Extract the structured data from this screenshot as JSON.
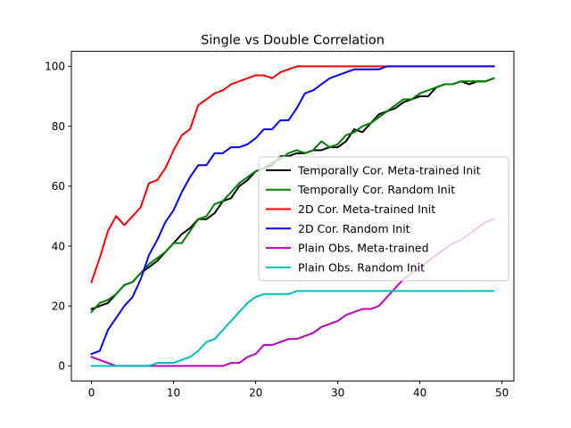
{
  "chart_data": {
    "type": "line",
    "title": "Single vs Double Correlation",
    "xlabel": "",
    "ylabel": "",
    "xlim": [
      -2.45,
      51.45
    ],
    "ylim": [
      -5,
      105
    ],
    "x_ticks": [
      0,
      10,
      20,
      30,
      40,
      50
    ],
    "y_ticks": [
      0,
      20,
      40,
      60,
      80,
      100
    ],
    "grid": false,
    "legend_position": "center-right",
    "x": [
      0,
      1,
      2,
      3,
      4,
      5,
      6,
      7,
      8,
      9,
      10,
      11,
      12,
      13,
      14,
      15,
      16,
      17,
      18,
      19,
      20,
      21,
      22,
      23,
      24,
      25,
      26,
      27,
      28,
      29,
      30,
      31,
      32,
      33,
      34,
      35,
      36,
      37,
      38,
      39,
      40,
      41,
      42,
      43,
      44,
      45,
      46,
      47,
      48,
      49
    ],
    "series": [
      {
        "name": "Temporally Cor. Meta-trained Init",
        "color": "#000000",
        "values": [
          19,
          20,
          21,
          24,
          27,
          28,
          31,
          33,
          35,
          38,
          41,
          44,
          46,
          49,
          49,
          51,
          55,
          56,
          60,
          62,
          65,
          66,
          67,
          70,
          70,
          71,
          71,
          72,
          72,
          73,
          73,
          75,
          79,
          78,
          81,
          84,
          85,
          86,
          88,
          89,
          90,
          90,
          93,
          94,
          94,
          95,
          94,
          95,
          95,
          96
        ]
      },
      {
        "name": "Temporally Cor. Random Init",
        "color": "#008000",
        "values": [
          18,
          21,
          22,
          24,
          27,
          28,
          31,
          34,
          36,
          38,
          41,
          41,
          45,
          49,
          50,
          54,
          55,
          58,
          61,
          63,
          65,
          66,
          68,
          69,
          71,
          72,
          71,
          72,
          75,
          73,
          74,
          77,
          78,
          80,
          81,
          83,
          85,
          87,
          89,
          89,
          91,
          92,
          93,
          94,
          94,
          95,
          95,
          95,
          95,
          96
        ]
      },
      {
        "name": "2D Cor. Meta-trained Init",
        "color": "#ff0000",
        "values": [
          28,
          36,
          45,
          50,
          47,
          50,
          53,
          61,
          62,
          66,
          72,
          77,
          79,
          87,
          89,
          91,
          92,
          94,
          95,
          96,
          97,
          97,
          96,
          98,
          99,
          100,
          100,
          100,
          100,
          100,
          100,
          100,
          100,
          100,
          100,
          100,
          100,
          100,
          100,
          100,
          100,
          100,
          100,
          100,
          100,
          100,
          100,
          100,
          100,
          100
        ]
      },
      {
        "name": "2D Cor. Random Init",
        "color": "#0000ff",
        "values": [
          4,
          5,
          12,
          16,
          20,
          23,
          29,
          37,
          42,
          48,
          52,
          58,
          63,
          67,
          67,
          71,
          71,
          73,
          73,
          74,
          76,
          79,
          79,
          82,
          82,
          86,
          91,
          92,
          94,
          96,
          97,
          98,
          99,
          99,
          99,
          99,
          100,
          100,
          100,
          100,
          100,
          100,
          100,
          100,
          100,
          100,
          100,
          100,
          100,
          100
        ]
      },
      {
        "name": "Plain Obs. Meta-trained",
        "color": "#bf00bf",
        "values": [
          3,
          2,
          1,
          0,
          0,
          0,
          0,
          0,
          0,
          0,
          0,
          0,
          0,
          0,
          0,
          0,
          0,
          1,
          1,
          3,
          4,
          7,
          7,
          8,
          9,
          9,
          10,
          11,
          13,
          14,
          15,
          17,
          18,
          19,
          19,
          20,
          23,
          26,
          29,
          31,
          33,
          35,
          37,
          39,
          41,
          42,
          44,
          46,
          48,
          49
        ]
      },
      {
        "name": "Plain Obs. Random Init",
        "color": "#00bfbf",
        "values": [
          0,
          0,
          0,
          0,
          0,
          0,
          0,
          0,
          1,
          1,
          1,
          2,
          3,
          5,
          8,
          9,
          12,
          15,
          18,
          21,
          23,
          24,
          24,
          24,
          24,
          25,
          25,
          25,
          25,
          25,
          25,
          25,
          25,
          25,
          25,
          25,
          25,
          25,
          25,
          25,
          25,
          25,
          25,
          25,
          25,
          25,
          25,
          25,
          25,
          25
        ]
      }
    ]
  }
}
